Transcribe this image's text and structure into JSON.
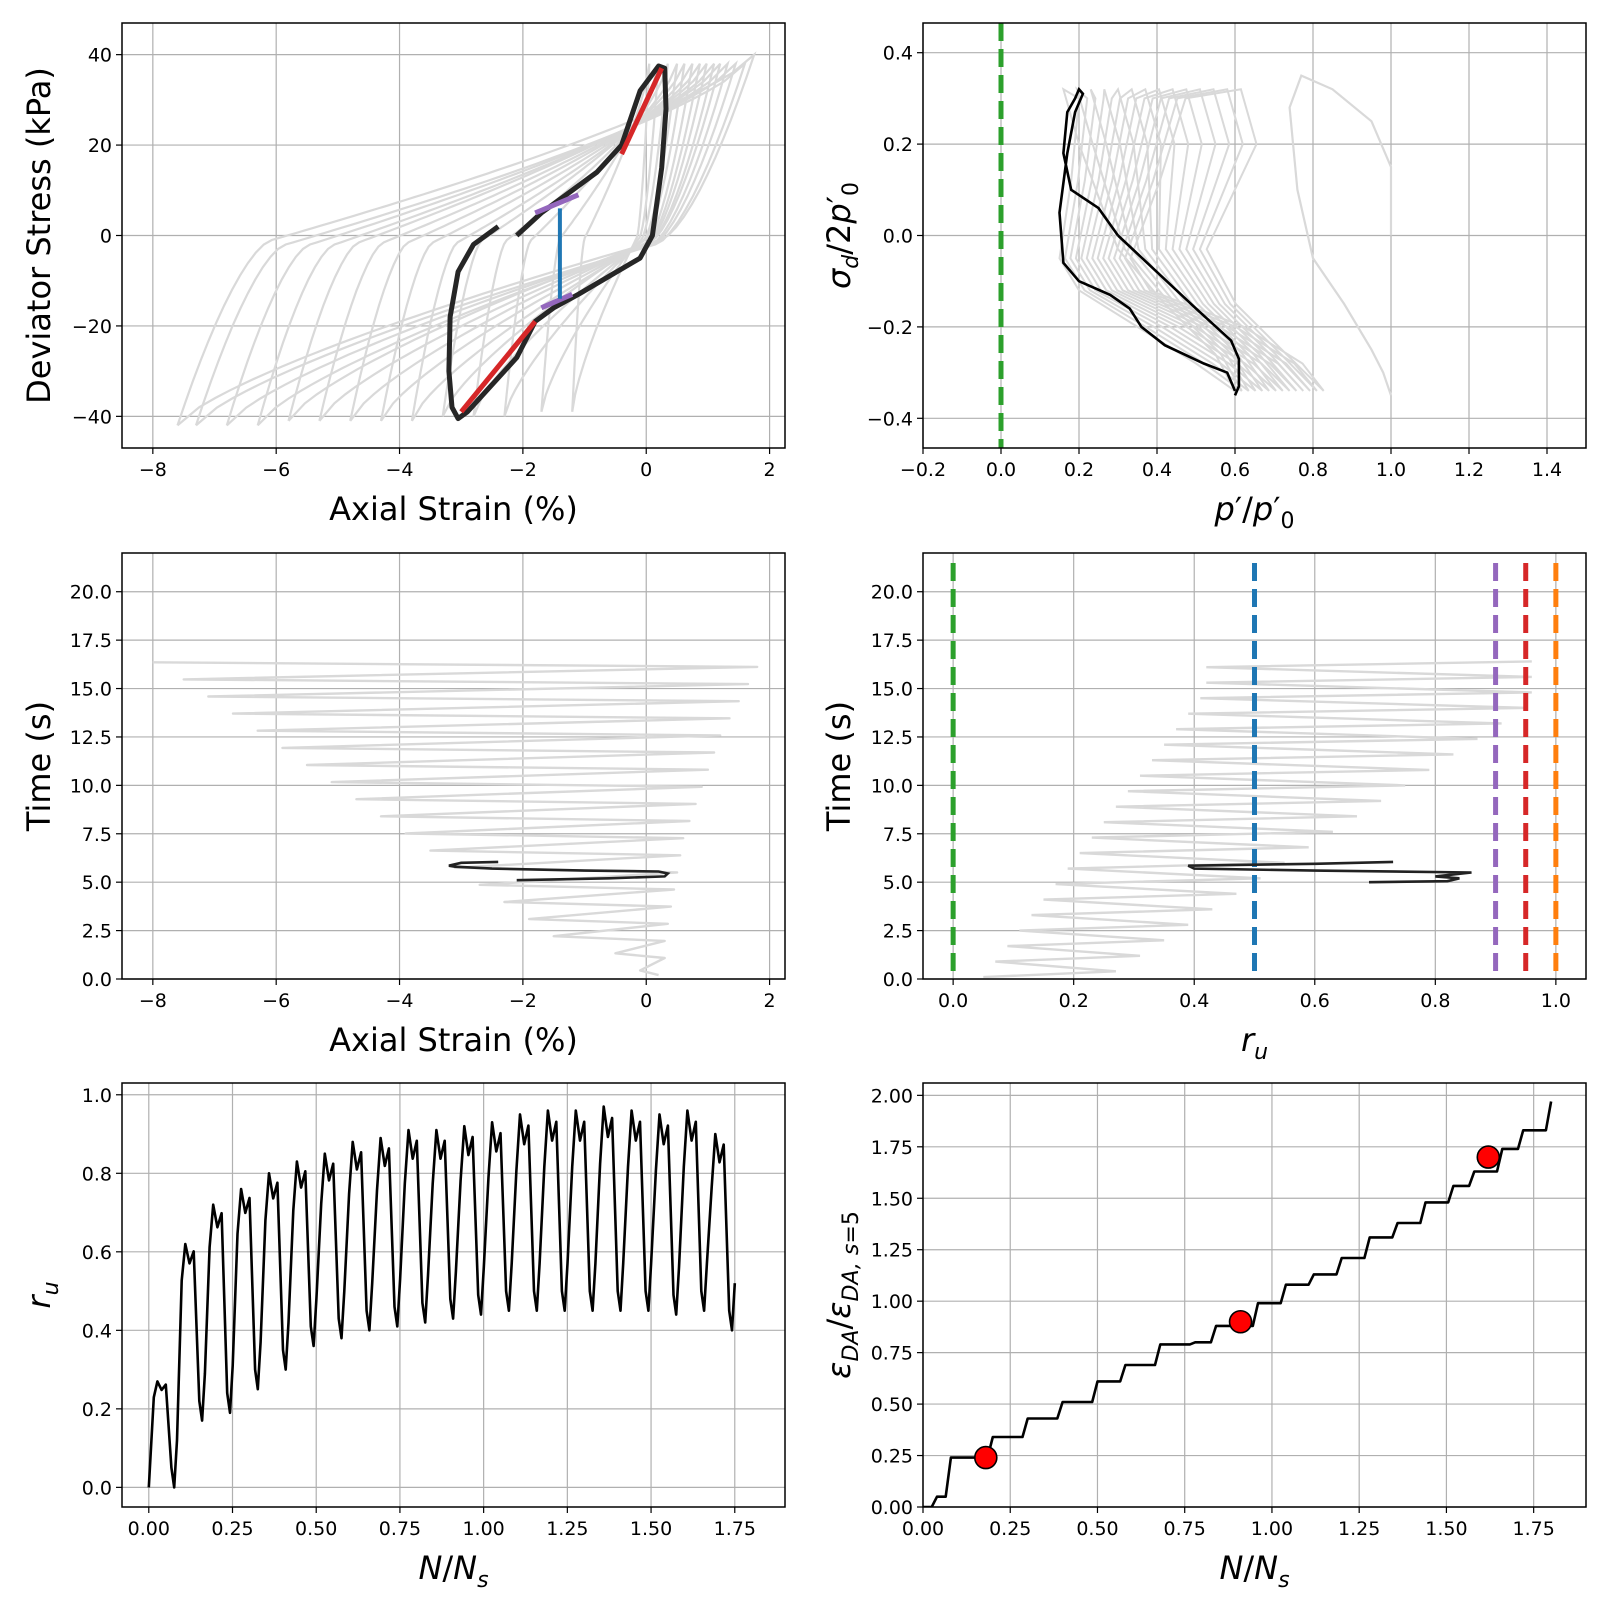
{
  "chart_data": [
    {
      "id": "p1",
      "type": "line",
      "xlabel": "Axial Strain (%)",
      "ylabel": "Deviator Stress (kPa)",
      "xlim": [
        -8.5,
        2.25
      ],
      "ylim": [
        -47,
        47
      ],
      "xticks": [
        -8,
        -6,
        -4,
        -2,
        0,
        2
      ],
      "yticks": [
        -40,
        -20,
        0,
        20,
        40
      ],
      "xtick_labels": [
        "−8",
        "−6",
        "−4",
        "−2",
        "0",
        "2"
      ],
      "ytick_labels": [
        "−40",
        "−20",
        "0",
        "20",
        "40"
      ],
      "grid": true,
      "background_loops": {
        "color": "#d9d9d9",
        "pos_tips": [
          [
            0.05,
            38
          ],
          [
            0.2,
            38
          ],
          [
            0.35,
            38
          ],
          [
            0.5,
            38
          ],
          [
            0.62,
            38
          ],
          [
            0.75,
            38
          ],
          [
            0.87,
            38
          ],
          [
            0.98,
            38
          ],
          [
            1.1,
            38
          ],
          [
            1.2,
            38
          ],
          [
            1.32,
            38
          ],
          [
            1.45,
            38
          ],
          [
            1.6,
            38
          ],
          [
            1.75,
            40
          ]
        ],
        "neg_tips": [
          [
            -1.2,
            -39
          ],
          [
            -1.7,
            -39
          ],
          [
            -2.3,
            -40
          ],
          [
            -2.8,
            -40
          ],
          [
            -3.3,
            -40
          ],
          [
            -3.8,
            -41
          ],
          [
            -4.3,
            -41
          ],
          [
            -4.8,
            -41
          ],
          [
            -5.3,
            -41
          ],
          [
            -5.8,
            -41
          ],
          [
            -6.3,
            -42
          ],
          [
            -6.8,
            -42
          ],
          [
            -7.3,
            -42
          ],
          [
            -7.6,
            -42
          ],
          [
            -8.0,
            -43
          ]
        ]
      },
      "highlight_loop": {
        "color": "#262626",
        "points": [
          [
            -2.4,
            2
          ],
          [
            -2.8,
            -2
          ],
          [
            -3.05,
            -8
          ],
          [
            -3.18,
            -18
          ],
          [
            -3.2,
            -30
          ],
          [
            -3.15,
            -38
          ],
          [
            -3.05,
            -40.5
          ],
          [
            -2.9,
            -39
          ],
          [
            -2.5,
            -33
          ],
          [
            -2.1,
            -27
          ],
          [
            -1.8,
            -19
          ],
          [
            -1.5,
            -16
          ],
          [
            -1.1,
            -13
          ],
          [
            -0.6,
            -9
          ],
          [
            -0.1,
            -5
          ],
          [
            0.1,
            0
          ],
          [
            0.25,
            15
          ],
          [
            0.32,
            28
          ],
          [
            0.3,
            37
          ],
          [
            0.2,
            37.5
          ],
          [
            -0.1,
            32
          ],
          [
            -0.4,
            20
          ],
          [
            -0.8,
            14
          ],
          [
            -1.3,
            9
          ],
          [
            -1.7,
            5
          ],
          [
            -2.1,
            0
          ]
        ],
        "dashed_gap": [
          [
            -2.4,
            1
          ],
          [
            -2.1,
            0
          ]
        ]
      },
      "red_segments": [
        [
          [
            -3.0,
            -39
          ],
          [
            -1.8,
            -19
          ]
        ],
        [
          [
            -0.4,
            18
          ],
          [
            0.25,
            37
          ]
        ]
      ],
      "purple_segments": [
        [
          [
            -1.8,
            5
          ],
          [
            -1.1,
            9
          ]
        ],
        [
          [
            -1.7,
            -16
          ],
          [
            -1.2,
            -13
          ]
        ]
      ],
      "blue_segment": [
        [
          -1.4,
          6
        ],
        [
          -1.4,
          -14
        ]
      ],
      "colors": {
        "red": "#d62728",
        "purple": "#9467bd",
        "blue": "#1f77b4"
      }
    },
    {
      "id": "p2",
      "type": "line",
      "xlabel": "p′/p′₀",
      "ylabel": "σ_d/2p′₀",
      "xlim": [
        -0.2,
        1.5
      ],
      "ylim": [
        -0.465,
        0.465
      ],
      "xticks": [
        -0.2,
        0.0,
        0.2,
        0.4,
        0.6,
        0.8,
        1.0,
        1.2,
        1.4
      ],
      "yticks": [
        -0.4,
        -0.2,
        0.0,
        0.2,
        0.4
      ],
      "xtick_labels": [
        "−0.2",
        "0.0",
        "0.2",
        "0.4",
        "0.6",
        "0.8",
        "1.0",
        "1.2",
        "1.4"
      ],
      "ytick_labels": [
        "−0.4",
        "−0.2",
        "0.0",
        "0.2",
        "0.4"
      ],
      "grid": true,
      "vline": {
        "x": 0.0,
        "color": "#2ca02c"
      },
      "first_path": [
        [
          1.0,
          0.0
        ],
        [
          1.0,
          0.15
        ],
        [
          0.95,
          0.25
        ],
        [
          0.85,
          0.32
        ],
        [
          0.77,
          0.35
        ],
        [
          0.74,
          0.28
        ],
        [
          0.76,
          0.1
        ],
        [
          0.8,
          -0.05
        ],
        [
          0.88,
          -0.15
        ],
        [
          0.95,
          -0.25
        ],
        [
          0.98,
          -0.3
        ],
        [
          1.0,
          -0.35
        ]
      ],
      "highlight_path": [
        [
          0.3,
          0.0
        ],
        [
          0.25,
          0.06
        ],
        [
          0.18,
          0.1
        ],
        [
          0.16,
          0.18
        ],
        [
          0.17,
          0.27
        ],
        [
          0.19,
          0.3
        ],
        [
          0.2,
          0.32
        ],
        [
          0.21,
          0.31
        ],
        [
          0.19,
          0.27
        ],
        [
          0.17,
          0.18
        ],
        [
          0.15,
          0.05
        ],
        [
          0.16,
          -0.06
        ],
        [
          0.2,
          -0.1
        ],
        [
          0.28,
          -0.13
        ],
        [
          0.33,
          -0.16
        ],
        [
          0.36,
          -0.2
        ],
        [
          0.42,
          -0.24
        ],
        [
          0.52,
          -0.28
        ],
        [
          0.58,
          -0.3
        ],
        [
          0.6,
          -0.34
        ]
      ],
      "highlight_path2": [
        [
          0.3,
          0.0
        ],
        [
          0.4,
          -0.08
        ],
        [
          0.5,
          -0.16
        ],
        [
          0.59,
          -0.23
        ],
        [
          0.61,
          -0.27
        ],
        [
          0.61,
          -0.33
        ],
        [
          0.6,
          -0.35
        ]
      ]
    },
    {
      "id": "p3",
      "type": "line",
      "xlabel": "Axial Strain (%)",
      "ylabel": "Time (s)",
      "xlim": [
        -8.5,
        2.25
      ],
      "ylim": [
        0.0,
        22.0
      ],
      "xticks": [
        -8,
        -6,
        -4,
        -2,
        0,
        2
      ],
      "yticks": [
        0.0,
        2.5,
        5.0,
        7.5,
        10.0,
        12.5,
        15.0,
        17.5,
        20.0
      ],
      "xtick_labels": [
        "−8",
        "−6",
        "−4",
        "−2",
        "0",
        "2"
      ],
      "ytick_labels": [
        "0.0",
        "2.5",
        "5.0",
        "7.5",
        "10.0",
        "12.5",
        "15.0",
        "17.5",
        "20.0"
      ],
      "grid": true,
      "background_extremes": {
        "min_x": [
          -0.1,
          -0.5,
          -1.5,
          -1.9,
          -2.3,
          -2.7,
          -3.1,
          -3.5,
          -3.9,
          -4.3,
          -4.7,
          -5.1,
          -5.5,
          -5.9,
          -6.3,
          -6.7,
          -7.1,
          -7.5,
          -8.0
        ],
        "max_x": [
          0.2,
          0.3,
          0.3,
          0.35,
          0.4,
          0.45,
          0.5,
          0.55,
          0.6,
          0.7,
          0.8,
          0.9,
          1.0,
          1.1,
          1.2,
          1.35,
          1.5,
          1.65,
          1.8
        ],
        "t_end": 16.8,
        "color": "#d9d9d9"
      },
      "highlight_path": [
        [
          -2.1,
          5.1
        ],
        [
          -0.6,
          5.2
        ],
        [
          0.3,
          5.3
        ],
        [
          0.35,
          5.45
        ],
        [
          0.2,
          5.55
        ],
        [
          -1.0,
          5.6
        ],
        [
          -2.5,
          5.7
        ],
        [
          -3.1,
          5.8
        ],
        [
          -3.2,
          5.85
        ],
        [
          -3.0,
          6.0
        ],
        [
          -2.4,
          6.05
        ]
      ]
    },
    {
      "id": "p4",
      "type": "line",
      "xlabel": "r_u",
      "ylabel": "Time (s)",
      "xlim": [
        -0.05,
        1.05
      ],
      "ylim": [
        0.0,
        22.0
      ],
      "xticks": [
        0.0,
        0.2,
        0.4,
        0.6,
        0.8,
        1.0
      ],
      "yticks": [
        0.0,
        2.5,
        5.0,
        7.5,
        10.0,
        12.5,
        15.0,
        17.5,
        20.0
      ],
      "xtick_labels": [
        "0.0",
        "0.2",
        "0.4",
        "0.6",
        "0.8",
        "1.0"
      ],
      "ytick_labels": [
        "0.0",
        "2.5",
        "5.0",
        "7.5",
        "10.0",
        "12.5",
        "15.0",
        "17.5",
        "20.0"
      ],
      "grid": true,
      "vlines": [
        {
          "x": 0.0,
          "color": "#2ca02c"
        },
        {
          "x": 0.5,
          "color": "#1f77b4"
        },
        {
          "x": 0.9,
          "color": "#9467bd"
        },
        {
          "x": 0.95,
          "color": "#d62728"
        },
        {
          "x": 1.0,
          "color": "#ff7f0e"
        }
      ],
      "highlight_path": [
        [
          0.69,
          5.0
        ],
        [
          0.82,
          5.05
        ],
        [
          0.84,
          5.2
        ],
        [
          0.8,
          5.3
        ],
        [
          0.86,
          5.5
        ],
        [
          0.6,
          5.6
        ],
        [
          0.4,
          5.7
        ],
        [
          0.39,
          5.85
        ],
        [
          0.6,
          5.95
        ],
        [
          0.73,
          6.05
        ]
      ],
      "background_color": "#d9d9d9",
      "t_end": 16.8
    },
    {
      "id": "p5",
      "type": "line",
      "xlabel": "N/N_s",
      "ylabel": "r_u",
      "xlim": [
        -0.08,
        1.9
      ],
      "ylim": [
        -0.05,
        1.03
      ],
      "xticks": [
        0.0,
        0.25,
        0.5,
        0.75,
        1.0,
        1.25,
        1.5,
        1.75
      ],
      "yticks": [
        0.0,
        0.2,
        0.4,
        0.6,
        0.8,
        1.0
      ],
      "xtick_labels": [
        "0.00",
        "0.25",
        "0.50",
        "0.75",
        "1.00",
        "1.25",
        "1.50",
        "1.75"
      ],
      "ytick_labels": [
        "0.0",
        "0.2",
        "0.4",
        "0.6",
        "0.8",
        "1.0"
      ],
      "grid": true,
      "cycle_period": 0.0833,
      "peaks": [
        0.27,
        0.62,
        0.72,
        0.76,
        0.8,
        0.83,
        0.85,
        0.88,
        0.89,
        0.91,
        0.91,
        0.92,
        0.93,
        0.95,
        0.96,
        0.96,
        0.97,
        0.96,
        0.95,
        0.96,
        0.9
      ],
      "troughs": [
        0.0,
        0.17,
        0.19,
        0.25,
        0.3,
        0.36,
        0.38,
        0.4,
        0.41,
        0.42,
        0.43,
        0.44,
        0.45,
        0.45,
        0.45,
        0.45,
        0.45,
        0.45,
        0.44,
        0.45,
        0.4
      ]
    },
    {
      "id": "p6",
      "type": "line",
      "xlabel": "N/N_s",
      "ylabel": "ε_DA/ε_DA,s=5",
      "xlim": [
        0.0,
        1.9
      ],
      "ylim": [
        0.0,
        2.06
      ],
      "xticks": [
        0.0,
        0.25,
        0.5,
        0.75,
        1.0,
        1.25,
        1.5,
        1.75
      ],
      "yticks": [
        0.0,
        0.25,
        0.5,
        0.75,
        1.0,
        1.25,
        1.5,
        1.75,
        2.0
      ],
      "xtick_labels": [
        "0.00",
        "0.25",
        "0.50",
        "0.75",
        "1.00",
        "1.25",
        "1.50",
        "1.75"
      ],
      "ytick_labels": [
        "0.00",
        "0.25",
        "0.50",
        "0.75",
        "1.00",
        "1.25",
        "1.50",
        "1.75",
        "2.00"
      ],
      "grid": true,
      "steps": [
        [
          0.0,
          0.0
        ],
        [
          0.04,
          0.05
        ],
        [
          0.08,
          0.24
        ],
        [
          0.2,
          0.34
        ],
        [
          0.3,
          0.43
        ],
        [
          0.4,
          0.51
        ],
        [
          0.5,
          0.61
        ],
        [
          0.58,
          0.69
        ],
        [
          0.68,
          0.79
        ],
        [
          0.78,
          0.8
        ],
        [
          0.84,
          0.88
        ],
        [
          0.96,
          0.99
        ],
        [
          1.04,
          1.08
        ],
        [
          1.12,
          1.13
        ],
        [
          1.2,
          1.21
        ],
        [
          1.28,
          1.31
        ],
        [
          1.36,
          1.38
        ],
        [
          1.44,
          1.48
        ],
        [
          1.52,
          1.56
        ],
        [
          1.58,
          1.63
        ],
        [
          1.66,
          1.74
        ],
        [
          1.72,
          1.83
        ],
        [
          1.8,
          1.97
        ]
      ],
      "markers": [
        [
          0.18,
          0.24
        ],
        [
          0.91,
          0.9
        ],
        [
          1.62,
          1.7
        ]
      ],
      "marker_color": "#ff0000"
    }
  ]
}
